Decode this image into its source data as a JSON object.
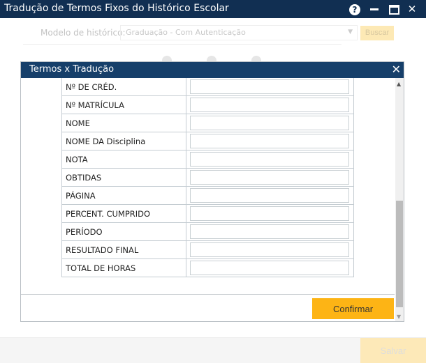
{
  "window": {
    "title": "Tradução de Termos Fixos do Histórico Escolar",
    "help_icon": "?",
    "close_icon": "✕"
  },
  "filter": {
    "label": "Modelo de histórico:",
    "selected": "Graduação - Com Autenticação",
    "dropdown_icon": "▼",
    "search_label": "Buscar"
  },
  "modal": {
    "title": "Termos x Tradução",
    "close_icon": "✕",
    "rows": [
      {
        "term": "Nº DE CRÉD.",
        "translation": ""
      },
      {
        "term": "Nº MATRÍCULA",
        "translation": ""
      },
      {
        "term": "NOME",
        "translation": ""
      },
      {
        "term": "NOME DA Disciplina",
        "translation": ""
      },
      {
        "term": "NOTA",
        "translation": ""
      },
      {
        "term": "OBTIDAS",
        "translation": ""
      },
      {
        "term": "PÁGINA",
        "translation": ""
      },
      {
        "term": "PERCENT. CUMPRIDO",
        "translation": ""
      },
      {
        "term": "PERÍODO",
        "translation": ""
      },
      {
        "term": "RESULTADO FINAL",
        "translation": ""
      },
      {
        "term": "TOTAL DE HORAS",
        "translation": ""
      }
    ],
    "confirm_label": "Confirmar",
    "scroll_up": "▲",
    "scroll_down": "▼"
  },
  "footer": {
    "save_label": "Salvar"
  },
  "colors": {
    "titlebar": "#112f52",
    "modal_header": "#163f6a",
    "accent": "#fdb415"
  }
}
